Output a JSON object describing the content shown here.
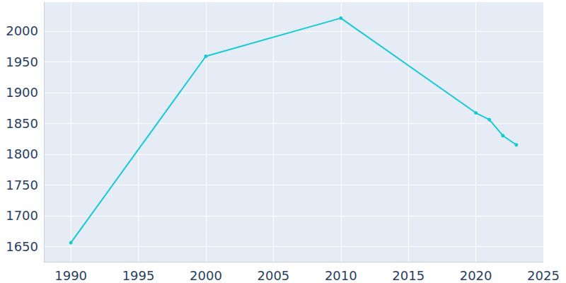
{
  "chart_data": {
    "type": "line",
    "x": [
      1990,
      2000,
      2010,
      2020,
      2021,
      2022,
      2023
    ],
    "values": [
      1656,
      1959,
      2021,
      1867,
      1856,
      1830,
      1815
    ],
    "color": "#17c9d3",
    "marker": "circle",
    "xlim": [
      1988,
      2025
    ],
    "xticks": [
      1990,
      1995,
      2000,
      2005,
      2010,
      2015,
      2020,
      2025
    ],
    "ylim": [
      1625,
      2047
    ],
    "yticks": [
      1650,
      1700,
      1750,
      1800,
      1850,
      1900,
      1950,
      2000
    ],
    "grid": true
  }
}
